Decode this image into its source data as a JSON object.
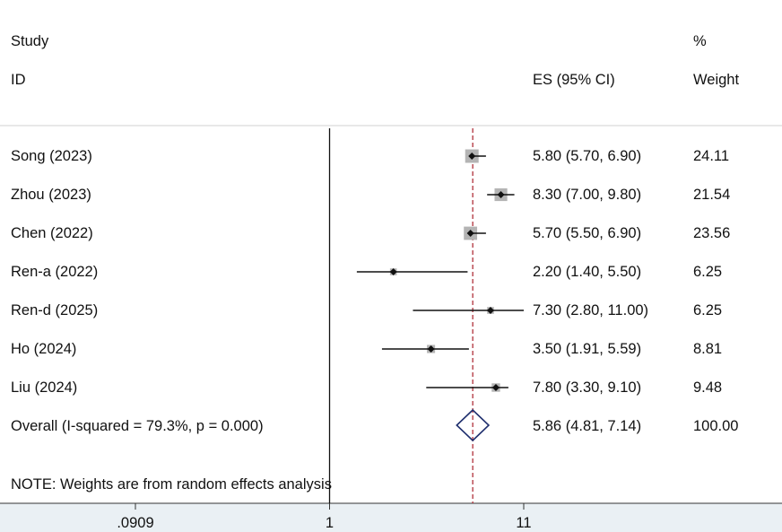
{
  "chart_data": {
    "type": "forest",
    "header": {
      "study_l1": "Study",
      "study_l2": "ID",
      "es_label": "ES (95% CI)",
      "weight_l1": "%",
      "weight_l2": "Weight"
    },
    "studies": [
      {
        "label": "Song (2023)",
        "es": 5.8,
        "lo": 5.7,
        "hi": 6.9,
        "ci_text": "5.80 (5.70, 6.90)",
        "weight": 24.11,
        "weight_text": "24.11"
      },
      {
        "label": "Zhou (2023)",
        "es": 8.3,
        "lo": 7.0,
        "hi": 9.8,
        "ci_text": "8.30 (7.00, 9.80)",
        "weight": 21.54,
        "weight_text": "21.54"
      },
      {
        "label": "Chen (2022)",
        "es": 5.7,
        "lo": 5.5,
        "hi": 6.9,
        "ci_text": "5.70 (5.50, 6.90)",
        "weight": 23.56,
        "weight_text": "23.56"
      },
      {
        "label": "Ren-a (2022)",
        "es": 2.2,
        "lo": 1.4,
        "hi": 5.5,
        "ci_text": "2.20 (1.40, 5.50)",
        "weight": 6.25,
        "weight_text": "6.25"
      },
      {
        "label": "Ren-d (2025)",
        "es": 7.3,
        "lo": 2.8,
        "hi": 11.0,
        "ci_text": "7.30 (2.80, 11.00)",
        "weight": 6.25,
        "weight_text": "6.25"
      },
      {
        "label": "Ho (2024)",
        "es": 3.5,
        "lo": 1.91,
        "hi": 5.59,
        "ci_text": "3.50 (1.91, 5.59)",
        "weight": 8.81,
        "weight_text": "8.81"
      },
      {
        "label": "Liu (2024)",
        "es": 7.8,
        "lo": 3.3,
        "hi": 9.1,
        "ci_text": "7.80 (3.30, 9.10)",
        "weight": 9.48,
        "weight_text": "9.48"
      }
    ],
    "overall": {
      "label": "Overall  (I-squared = 79.3%, p = 0.000)",
      "es": 5.86,
      "lo": 4.81,
      "hi": 7.14,
      "ci_text": "5.86 (4.81, 7.14)",
      "weight_text": "100.00"
    },
    "note": "NOTE: Weights are from random effects analysis",
    "x_scale": "log",
    "xlim": [
      0.0909,
      11
    ],
    "x_ticks": [
      {
        "value": 0.0909,
        "label": ".0909"
      },
      {
        "value": 1,
        "label": "1"
      },
      {
        "value": 11,
        "label": "11"
      }
    ],
    "null_value": 1,
    "colors": {
      "text": "#111111",
      "ci_line": "#111111",
      "weight_box": "#b4b4b4",
      "point": "#111111",
      "overall_diamond": "#1f2f6e",
      "overall_dash": "#b0303a",
      "bottom_band": "#eaf0f4"
    }
  }
}
